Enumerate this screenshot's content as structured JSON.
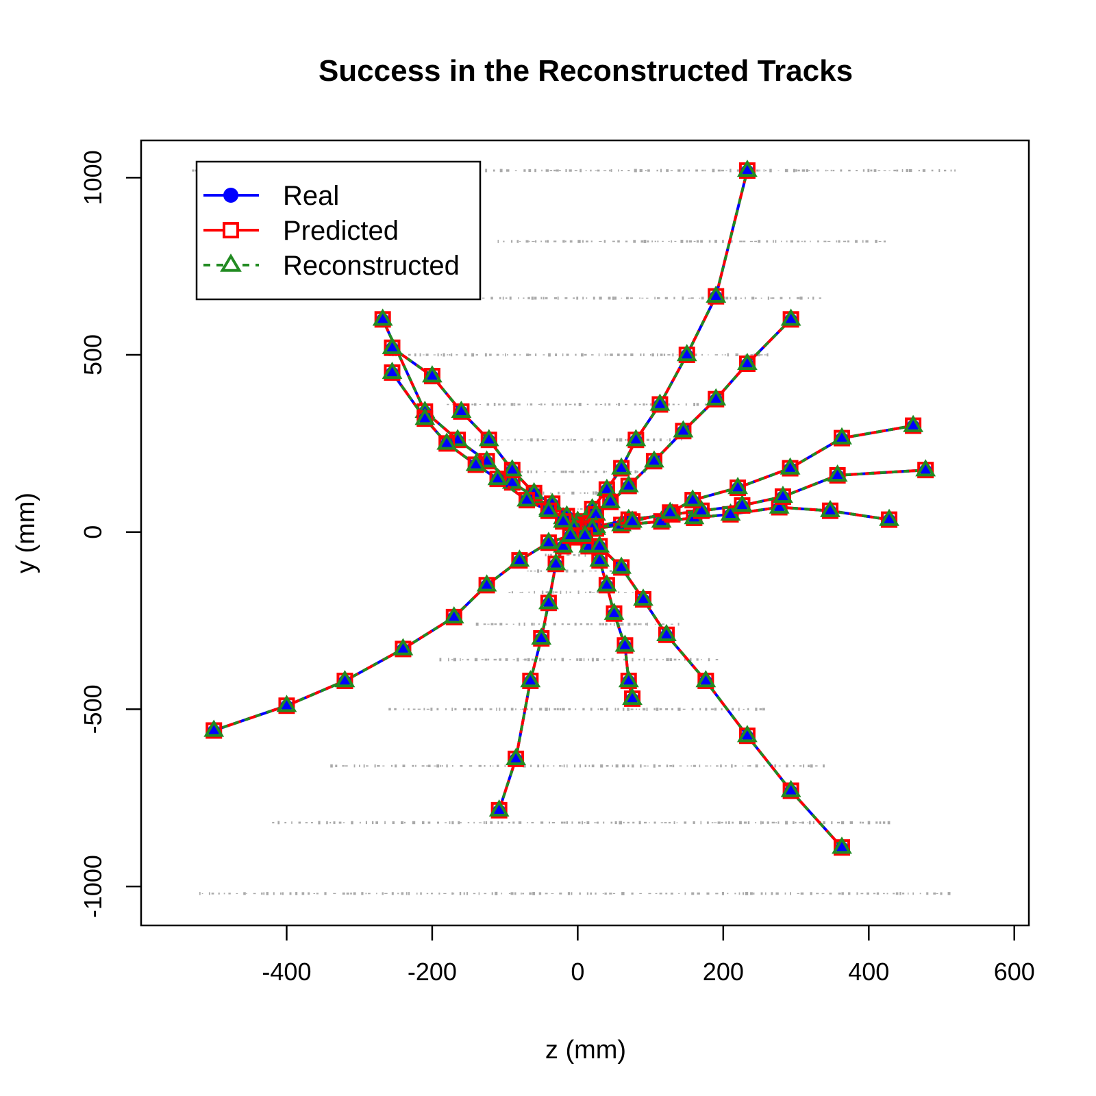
{
  "chart_data": {
    "type": "line",
    "title": "Success in the Reconstructed Tracks",
    "xlabel": "z (mm)",
    "ylabel": "y (mm)",
    "xlim": [
      -600,
      620
    ],
    "ylim": [
      -1110,
      1105
    ],
    "xticks": [
      -400,
      -200,
      0,
      200,
      400,
      600
    ],
    "xtick_labels": [
      "-400",
      "-200",
      "0",
      "200",
      "400",
      "600"
    ],
    "yticks": [
      -1000,
      -500,
      0,
      500,
      1000
    ],
    "ytick_labels": [
      "-1000",
      "-500",
      "0",
      "500",
      "1000"
    ],
    "grid": false,
    "legend_position": "top-left",
    "colors": {
      "real": "#0000ff",
      "predicted": "#ff0000",
      "reconstructed": "#228b22",
      "hits": "#a9a9a9"
    },
    "legend": [
      {
        "label": "Real",
        "marker": "circle",
        "line": "solid",
        "color": "#0000ff"
      },
      {
        "label": "Predicted",
        "marker": "square",
        "line": "solid",
        "color": "#ff0000"
      },
      {
        "label": "Reconstructed",
        "marker": "triangle",
        "line": "dashed",
        "color": "#228b22"
      }
    ],
    "background_hit_rows": [
      {
        "y": 1020,
        "z": [
          -530,
          520
        ]
      },
      {
        "y": 820,
        "z": [
          -110,
          430
        ]
      },
      {
        "y": 660,
        "z": [
          -340,
          340
        ]
      },
      {
        "y": 500,
        "z": [
          -260,
          260
        ]
      },
      {
        "y": 360,
        "z": [
          -180,
          180
        ]
      },
      {
        "y": 260,
        "z": [
          -150,
          150
        ]
      },
      {
        "y": 170,
        "z": [
          -95,
          95
        ]
      },
      {
        "y": 110,
        "z": [
          -70,
          70
        ]
      },
      {
        "y": 65,
        "z": [
          -45,
          45
        ]
      },
      {
        "y": 30,
        "z": [
          -25,
          25
        ]
      },
      {
        "y": -30,
        "z": [
          -25,
          25
        ]
      },
      {
        "y": -65,
        "z": [
          -45,
          45
        ]
      },
      {
        "y": -110,
        "z": [
          -70,
          70
        ]
      },
      {
        "y": -170,
        "z": [
          -95,
          95
        ]
      },
      {
        "y": -260,
        "z": [
          -140,
          140
        ]
      },
      {
        "y": -360,
        "z": [
          -190,
          190
        ]
      },
      {
        "y": -500,
        "z": [
          -260,
          260
        ]
      },
      {
        "y": -660,
        "z": [
          -340,
          340
        ]
      },
      {
        "y": -820,
        "z": [
          -420,
          430
        ]
      },
      {
        "y": -1020,
        "z": [
          -520,
          520
        ]
      }
    ],
    "tracks": [
      {
        "z": [
          0,
          20,
          40,
          60,
          80,
          113,
          150,
          190,
          233
        ],
        "y": [
          30,
          65,
          120,
          180,
          260,
          360,
          500,
          665,
          1020
        ]
      },
      {
        "z": [
          5,
          25,
          45,
          70,
          105,
          145,
          190,
          233,
          293
        ],
        "y": [
          20,
          50,
          85,
          130,
          200,
          285,
          375,
          475,
          600
        ]
      },
      {
        "z": [
          25,
          60,
          115,
          160,
          210,
          277,
          347,
          428
        ],
        "y": [
          10,
          20,
          30,
          40,
          50,
          70,
          60,
          35
        ]
      },
      {
        "z": [
          25,
          70,
          130,
          170,
          226,
          282,
          357,
          478
        ],
        "y": [
          15,
          35,
          50,
          60,
          75,
          100,
          160,
          175
        ]
      },
      {
        "z": [
          20,
          75,
          127,
          158,
          220,
          292,
          363,
          461
        ],
        "y": [
          10,
          30,
          55,
          90,
          125,
          180,
          265,
          300
        ]
      },
      {
        "z": [
          -5,
          -20,
          -40,
          -60,
          -90,
          -125,
          -165,
          -210,
          -268
        ],
        "y": [
          20,
          40,
          65,
          100,
          140,
          200,
          260,
          340,
          600
        ]
      },
      {
        "z": [
          -3,
          -15,
          -35,
          -60,
          -90,
          -122,
          -160,
          -200,
          -255
        ],
        "y": [
          20,
          45,
          80,
          110,
          175,
          260,
          340,
          440,
          520
        ]
      },
      {
        "z": [
          -5,
          -20,
          -40,
          -70,
          -110,
          -140,
          -180,
          -210,
          -255
        ],
        "y": [
          10,
          30,
          60,
          90,
          150,
          190,
          250,
          320,
          450
        ]
      },
      {
        "z": [
          -5,
          -20,
          -30,
          -40,
          -50,
          -65,
          -85,
          -108
        ],
        "y": [
          -15,
          -40,
          -90,
          -200,
          -300,
          -420,
          -640,
          -785
        ]
      },
      {
        "z": [
          5,
          15,
          30,
          40,
          50,
          65,
          70,
          75
        ],
        "y": [
          -15,
          -40,
          -80,
          -150,
          -230,
          -320,
          -420,
          -470
        ]
      },
      {
        "z": [
          10,
          30,
          60,
          90,
          122,
          176,
          233,
          293,
          363
        ],
        "y": [
          -10,
          -40,
          -100,
          -190,
          -290,
          -420,
          -575,
          -730,
          -890
        ]
      },
      {
        "z": [
          -10,
          -40,
          -80,
          -125,
          -170,
          -240,
          -320,
          -400,
          -500
        ],
        "y": [
          -10,
          -30,
          -80,
          -150,
          -240,
          -330,
          -420,
          -490,
          -560
        ]
      }
    ]
  }
}
